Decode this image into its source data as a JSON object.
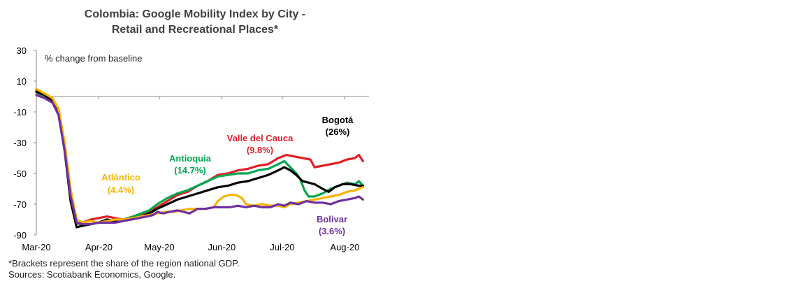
{
  "chart_data": {
    "type": "line",
    "title": [
      "Colombia: Google Mobility Index by City -",
      "Retail and Recreational Places*"
    ],
    "ylabel": "% change from baseline",
    "ylim": [
      -90,
      30
    ],
    "yticks": [
      "30",
      "10",
      "-10",
      "-30",
      "-50",
      "-70",
      "-90"
    ],
    "ytick_values": [
      30,
      10,
      -10,
      -30,
      -50,
      -70,
      -90
    ],
    "xlim": [
      0,
      165
    ],
    "xticks": [
      {
        "label": "Mar-20",
        "day": 0
      },
      {
        "label": "Apr-20",
        "day": 31
      },
      {
        "label": "May-20",
        "day": 61
      },
      {
        "label": "Jun-20",
        "day": 92
      },
      {
        "label": "Jul-20",
        "day": 122
      },
      {
        "label": "Aug-20",
        "day": 153
      }
    ],
    "x_unit": "days since 1 Mar 2020",
    "series": [
      {
        "name": "Valle del Cauca",
        "share": "(9.8%)",
        "color": "#e31e26",
        "points": [
          [
            0,
            4
          ],
          [
            4,
            1
          ],
          [
            8,
            -3
          ],
          [
            11,
            -8
          ],
          [
            14,
            -30
          ],
          [
            17,
            -62
          ],
          [
            20,
            -80
          ],
          [
            23,
            -82
          ],
          [
            27,
            -80
          ],
          [
            31,
            -79
          ],
          [
            35,
            -78
          ],
          [
            39,
            -79
          ],
          [
            43,
            -80
          ],
          [
            48,
            -78
          ],
          [
            52,
            -77
          ],
          [
            56,
            -75
          ],
          [
            60,
            -72
          ],
          [
            65,
            -68
          ],
          [
            70,
            -64
          ],
          [
            75,
            -62
          ],
          [
            80,
            -58
          ],
          [
            85,
            -55
          ],
          [
            90,
            -51
          ],
          [
            95,
            -50
          ],
          [
            100,
            -48
          ],
          [
            105,
            -47
          ],
          [
            110,
            -45
          ],
          [
            115,
            -44
          ],
          [
            120,
            -40
          ],
          [
            124,
            -38
          ],
          [
            128,
            -39
          ],
          [
            132,
            -40
          ],
          [
            136,
            -41
          ],
          [
            138,
            -46
          ],
          [
            142,
            -45
          ],
          [
            146,
            -44
          ],
          [
            150,
            -43
          ],
          [
            154,
            -41
          ],
          [
            158,
            -40
          ],
          [
            160,
            -38
          ],
          [
            162,
            -42
          ]
        ]
      },
      {
        "name": "Antioquia",
        "share": "(14.7%)",
        "color": "#00a651",
        "points": [
          [
            0,
            3
          ],
          [
            4,
            0
          ],
          [
            8,
            -4
          ],
          [
            11,
            -10
          ],
          [
            14,
            -35
          ],
          [
            17,
            -65
          ],
          [
            20,
            -82
          ],
          [
            23,
            -84
          ],
          [
            27,
            -83
          ],
          [
            31,
            -82
          ],
          [
            35,
            -80
          ],
          [
            39,
            -81
          ],
          [
            43,
            -80
          ],
          [
            48,
            -78
          ],
          [
            52,
            -76
          ],
          [
            56,
            -74
          ],
          [
            60,
            -70
          ],
          [
            65,
            -66
          ],
          [
            70,
            -63
          ],
          [
            75,
            -61
          ],
          [
            80,
            -58
          ],
          [
            85,
            -55
          ],
          [
            90,
            -52
          ],
          [
            95,
            -51
          ],
          [
            100,
            -50
          ],
          [
            105,
            -50
          ],
          [
            110,
            -48
          ],
          [
            115,
            -47
          ],
          [
            120,
            -44
          ],
          [
            123,
            -42
          ],
          [
            126,
            -46
          ],
          [
            129,
            -50
          ],
          [
            131,
            -54
          ],
          [
            133,
            -61
          ],
          [
            135,
            -65
          ],
          [
            138,
            -65
          ],
          [
            142,
            -63
          ],
          [
            146,
            -60
          ],
          [
            150,
            -58
          ],
          [
            154,
            -56
          ],
          [
            158,
            -57
          ],
          [
            160,
            -55
          ],
          [
            162,
            -58
          ]
        ]
      },
      {
        "name": "Bogotá",
        "share": "(26%)",
        "color": "#000000",
        "points": [
          [
            0,
            3
          ],
          [
            4,
            1
          ],
          [
            8,
            -3
          ],
          [
            11,
            -10
          ],
          [
            14,
            -35
          ],
          [
            17,
            -68
          ],
          [
            20,
            -85
          ],
          [
            23,
            -84
          ],
          [
            27,
            -83
          ],
          [
            31,
            -82
          ],
          [
            35,
            -80
          ],
          [
            39,
            -81
          ],
          [
            43,
            -80
          ],
          [
            48,
            -79
          ],
          [
            52,
            -78
          ],
          [
            56,
            -76
          ],
          [
            60,
            -73
          ],
          [
            65,
            -70
          ],
          [
            70,
            -67
          ],
          [
            75,
            -65
          ],
          [
            80,
            -63
          ],
          [
            85,
            -61
          ],
          [
            90,
            -59
          ],
          [
            95,
            -58
          ],
          [
            100,
            -56
          ],
          [
            105,
            -55
          ],
          [
            110,
            -53
          ],
          [
            115,
            -51
          ],
          [
            120,
            -48
          ],
          [
            123,
            -46
          ],
          [
            126,
            -48
          ],
          [
            129,
            -51
          ],
          [
            132,
            -55
          ],
          [
            135,
            -56
          ],
          [
            138,
            -57
          ],
          [
            142,
            -60
          ],
          [
            145,
            -62
          ],
          [
            148,
            -59
          ],
          [
            152,
            -57
          ],
          [
            156,
            -57
          ],
          [
            160,
            -58
          ],
          [
            162,
            -58
          ]
        ]
      },
      {
        "name": "Atlántico",
        "share": "(4.4%)",
        "color": "#f7b500",
        "points": [
          [
            0,
            5
          ],
          [
            4,
            2
          ],
          [
            8,
            -1
          ],
          [
            11,
            -8
          ],
          [
            14,
            -30
          ],
          [
            17,
            -60
          ],
          [
            20,
            -80
          ],
          [
            23,
            -82
          ],
          [
            27,
            -81
          ],
          [
            31,
            -82
          ],
          [
            35,
            -81
          ],
          [
            39,
            -80
          ],
          [
            43,
            -80
          ],
          [
            48,
            -79
          ],
          [
            52,
            -78
          ],
          [
            56,
            -77
          ],
          [
            60,
            -76
          ],
          [
            64,
            -75
          ],
          [
            68,
            -75
          ],
          [
            72,
            -74
          ],
          [
            76,
            -73
          ],
          [
            80,
            -73
          ],
          [
            84,
            -73
          ],
          [
            88,
            -72
          ],
          [
            90,
            -68
          ],
          [
            93,
            -65
          ],
          [
            96,
            -64
          ],
          [
            99,
            -64
          ],
          [
            102,
            -66
          ],
          [
            104,
            -70
          ],
          [
            108,
            -71
          ],
          [
            112,
            -70
          ],
          [
            116,
            -71
          ],
          [
            120,
            -71
          ],
          [
            123,
            -72
          ],
          [
            126,
            -70
          ],
          [
            130,
            -69
          ],
          [
            134,
            -68
          ],
          [
            138,
            -67
          ],
          [
            142,
            -66
          ],
          [
            146,
            -65
          ],
          [
            150,
            -64
          ],
          [
            154,
            -62
          ],
          [
            158,
            -61
          ],
          [
            160,
            -60
          ],
          [
            162,
            -59
          ]
        ]
      },
      {
        "name": "Bolívar",
        "share": "(3.6%)",
        "color": "#7030a0",
        "points": [
          [
            0,
            1
          ],
          [
            4,
            -1
          ],
          [
            8,
            -4
          ],
          [
            11,
            -12
          ],
          [
            14,
            -35
          ],
          [
            17,
            -65
          ],
          [
            20,
            -82
          ],
          [
            23,
            -83
          ],
          [
            27,
            -83
          ],
          [
            31,
            -82
          ],
          [
            35,
            -82
          ],
          [
            39,
            -82
          ],
          [
            43,
            -81
          ],
          [
            47,
            -80
          ],
          [
            51,
            -79
          ],
          [
            55,
            -78
          ],
          [
            58,
            -77
          ],
          [
            60,
            -75
          ],
          [
            63,
            -76
          ],
          [
            66,
            -75
          ],
          [
            70,
            -74
          ],
          [
            73,
            -75
          ],
          [
            76,
            -76
          ],
          [
            80,
            -73
          ],
          [
            84,
            -73
          ],
          [
            88,
            -72
          ],
          [
            92,
            -72
          ],
          [
            96,
            -72
          ],
          [
            100,
            -71
          ],
          [
            104,
            -72
          ],
          [
            108,
            -71
          ],
          [
            112,
            -72
          ],
          [
            116,
            -72
          ],
          [
            120,
            -70
          ],
          [
            123,
            -71
          ],
          [
            126,
            -69
          ],
          [
            130,
            -70
          ],
          [
            134,
            -68
          ],
          [
            138,
            -69
          ],
          [
            142,
            -69
          ],
          [
            146,
            -70
          ],
          [
            150,
            -68
          ],
          [
            154,
            -67
          ],
          [
            158,
            -66
          ],
          [
            160,
            -65
          ],
          [
            162,
            -67
          ]
        ]
      }
    ],
    "annotations": [
      {
        "text": "Valle del Cauca",
        "share": "(9.8%)",
        "color": "#e31e26"
      },
      {
        "text": "Antioquia",
        "share": "(14.7%)",
        "color": "#00a651"
      },
      {
        "text": "Bogotá",
        "share": "(26%)",
        "color": "#000000"
      },
      {
        "text": "Atlántico",
        "share": "(4.4%)",
        "color": "#f7b500"
      },
      {
        "text": "Bolivar",
        "share": "(3.6%)",
        "color": "#7030a0"
      }
    ]
  },
  "footnotes": {
    "note": "*Brackets represent the share of the region national GDP.",
    "sources": "Sources: Scotiabank Economics, Google."
  }
}
